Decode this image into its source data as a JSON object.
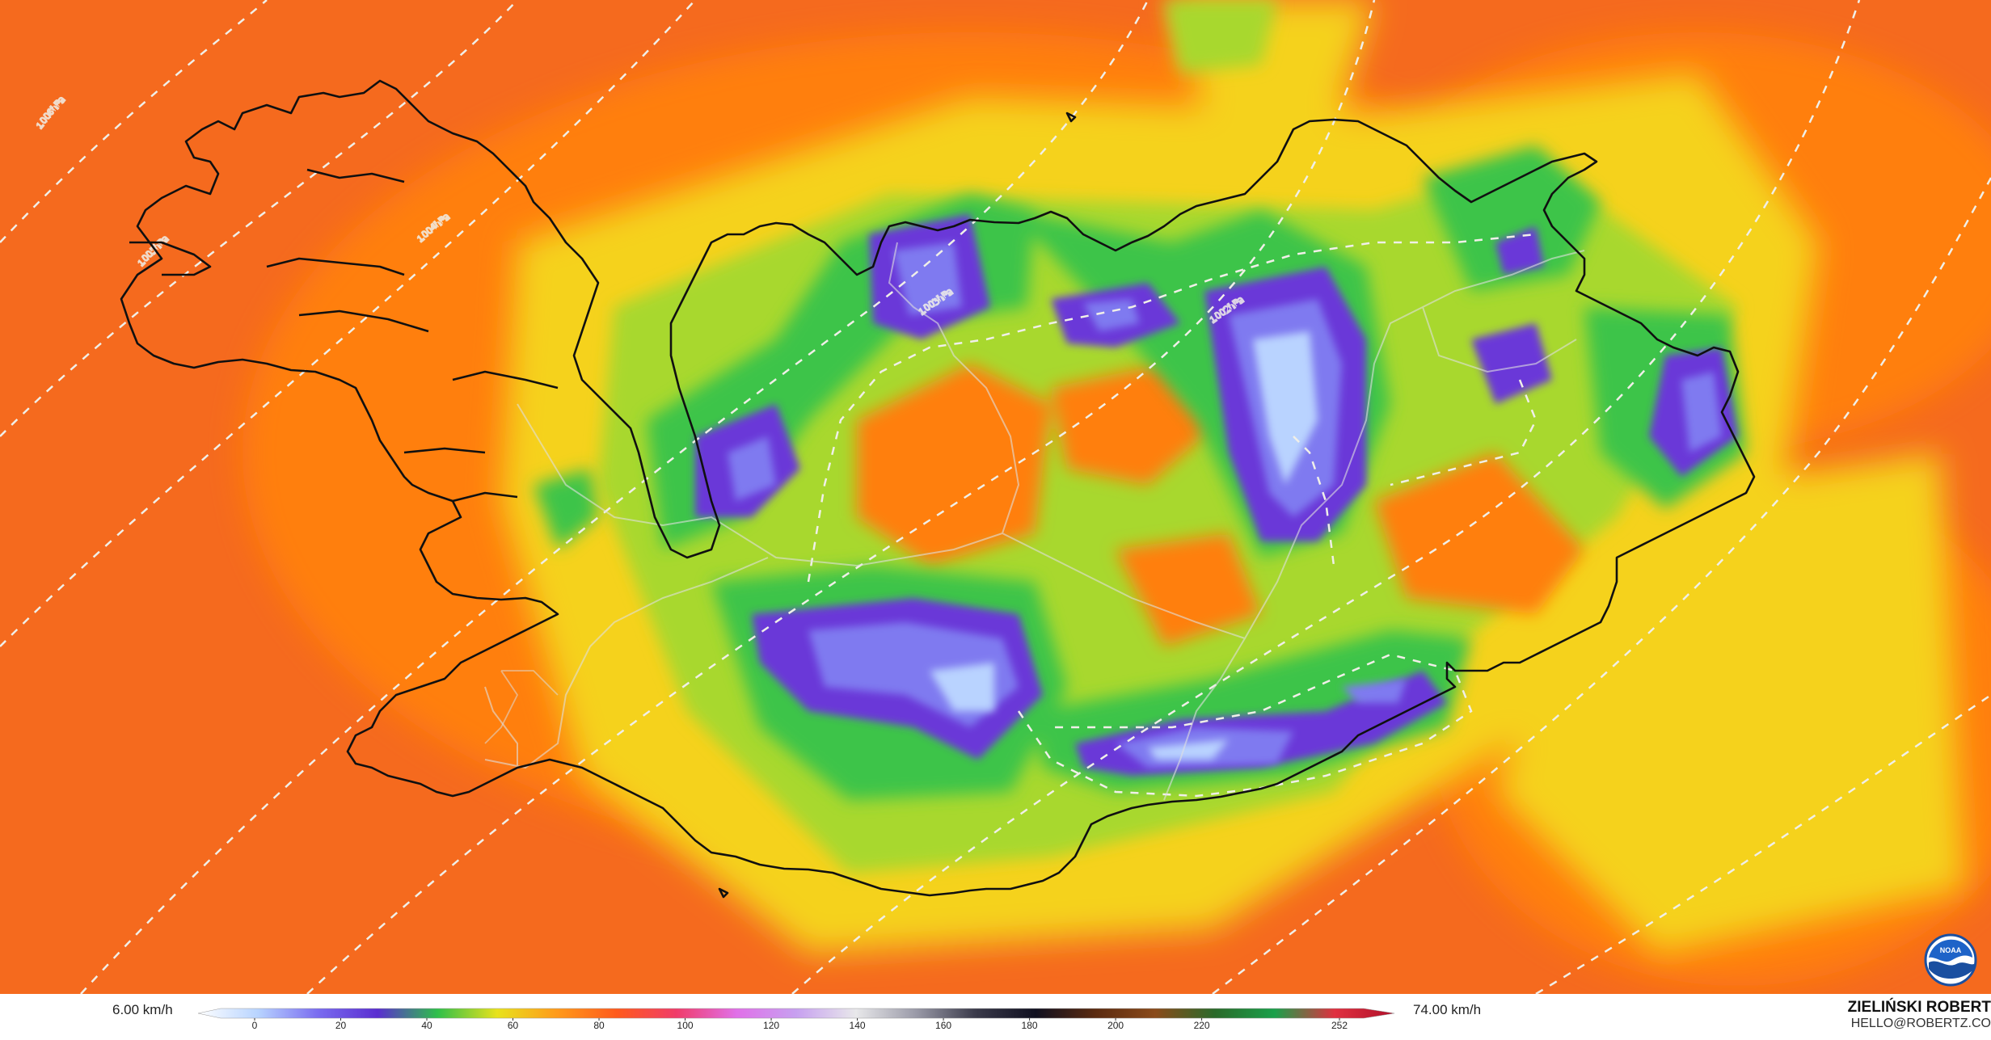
{
  "map": {
    "region": "Iceland",
    "palette": {
      "ocean_base": "#f56a1e",
      "orange": "#ff7f10",
      "yellow": "#f5d21c",
      "lime": "#a8d82e",
      "green": "#3cc44a",
      "violet": "#6a38d8",
      "blue": "#7f7af0",
      "pale": "#b9d3ff",
      "coast": "#101010",
      "isobar": "#f0efe8"
    },
    "isobar_labels": [
      "1006hPa",
      "1005hPa",
      "1004hPa",
      "1003hPa",
      "1002hPa"
    ]
  },
  "legend": {
    "min_label": "6.00 km/h",
    "max_label": "74.00 km/h",
    "ticks": [
      "0",
      "20",
      "40",
      "60",
      "80",
      "100",
      "120",
      "140",
      "160",
      "180",
      "200",
      "220",
      "252"
    ],
    "stops": [
      "#ffffff",
      "#b8d4ff",
      "#7a6cf0",
      "#5a2ed0",
      "#2fbf4a",
      "#e8e21c",
      "#ff9a1a",
      "#ff5a1c",
      "#f03c6a",
      "#e070e8",
      "#c7a0f0",
      "#e8e8ea",
      "#9a9aa8",
      "#3a3a4a",
      "#101020",
      "#5a2a10",
      "#8a4a1a",
      "#2a6a2a",
      "#1aa04a",
      "#e03040",
      "#b0102a"
    ]
  },
  "credit": {
    "name": "ZIELIŃSKI ROBERT",
    "email": "HELLO@ROBERTZ.CO"
  },
  "logo": {
    "text": "NOAA",
    "icon": "noaa-logo-icon"
  }
}
